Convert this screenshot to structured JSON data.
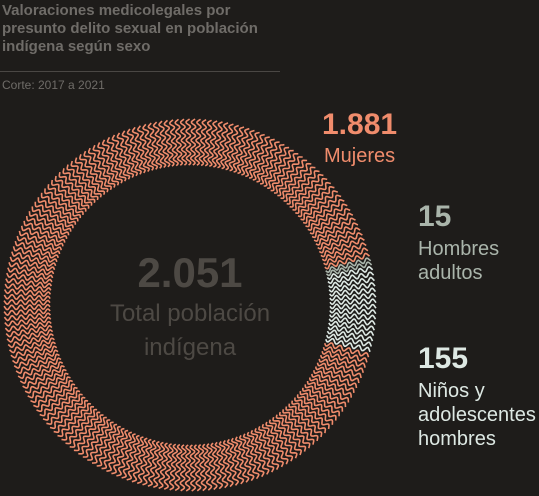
{
  "chart_data": {
    "type": "donut",
    "title": "Valoraciones medicolegales por presunto delito sexual en población indígena según sexo",
    "subtitle": "Corte: 2017 a 2021",
    "categories": [
      "Mujeres",
      "Hombres adultos",
      "Niños y adolescentes hombres"
    ],
    "values": [
      1881,
      15,
      155
    ],
    "value_labels": [
      "1.881",
      "15",
      "155"
    ],
    "colors": [
      "#f08c6c",
      "#aab5ab",
      "#dde8e3"
    ],
    "total": 2051,
    "total_label": "2.051",
    "total_name": "Total población indígena"
  }
}
